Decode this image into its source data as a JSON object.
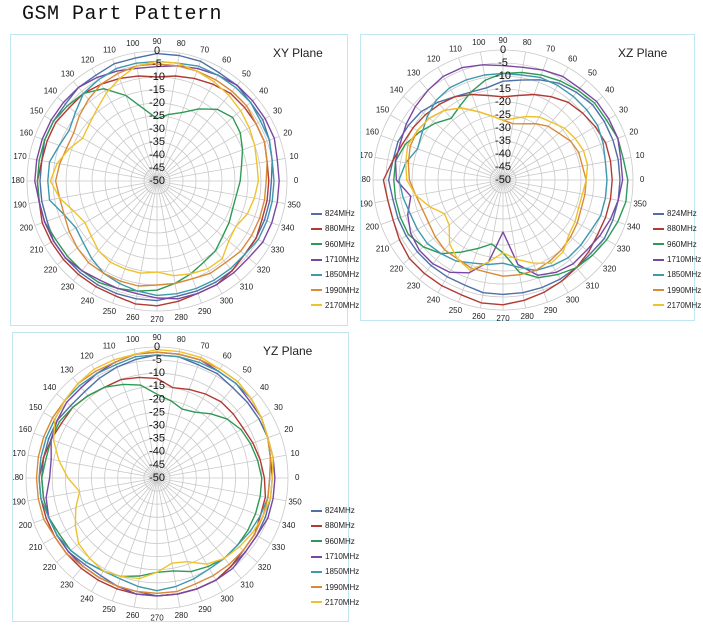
{
  "page_title": "GSM Part Pattern",
  "colors": {
    "824MHz": "#4e6fa8",
    "880MHz": "#b13a33",
    "960MHz": "#2e9a55",
    "1710MHz": "#7a46a3",
    "1850MHz": "#3e98ae",
    "1990MHz": "#d88a36",
    "2170MHz": "#efc22c"
  },
  "chart_data": [
    {
      "type": "radar",
      "title": "XY Plane",
      "radial_range": [
        -50,
        0
      ],
      "radial_ticks": [
        "0",
        "-5",
        "-10",
        "-15",
        "-20",
        "-25",
        "-30",
        "-35",
        "-40",
        "-45",
        "-50"
      ],
      "angle_ticks": [
        "0",
        "10",
        "20",
        "30",
        "40",
        "50",
        "60",
        "70",
        "80",
        "90",
        "100",
        "110",
        "120",
        "130",
        "140",
        "150",
        "160",
        "170",
        "180",
        "190",
        "200",
        "210",
        "220",
        "230",
        "240",
        "250",
        "260",
        "270",
        "280",
        "290",
        "300",
        "310",
        "320",
        "330",
        "340",
        "350"
      ],
      "legend_position": "right",
      "series": [
        {
          "name": "824MHz",
          "values": [
            -6,
            -5,
            -4,
            -3,
            -3,
            -2,
            -2,
            -1,
            -1,
            -1,
            -2,
            -2,
            -3,
            -3,
            -4,
            -4,
            -4,
            -5,
            -5,
            -5,
            -5,
            -4,
            -4,
            -4,
            -4,
            -4,
            -4,
            -4,
            -5,
            -5,
            -5,
            -5,
            -6,
            -6,
            -6,
            -6
          ]
        },
        {
          "name": "880MHz",
          "values": [
            -7,
            -7,
            -6,
            -6,
            -6,
            -6,
            -7,
            -8,
            -9,
            -10,
            -9,
            -8,
            -7,
            -6,
            -6,
            -5,
            -5,
            -5,
            -4,
            -4,
            -3,
            -3,
            -3,
            -3,
            -3,
            -3,
            -2,
            -2,
            -3,
            -4,
            -4,
            -5,
            -6,
            -6,
            -7,
            -7
          ]
        },
        {
          "name": "960MHz",
          "values": [
            -18,
            -17,
            -15,
            -13,
            -12,
            -14,
            -18,
            -22,
            -24,
            -26,
            -22,
            -15,
            -9,
            -6,
            -5,
            -4,
            -4,
            -4,
            -4,
            -4,
            -4,
            -5,
            -5,
            -5,
            -5,
            -6,
            -7,
            -8,
            -10,
            -12,
            -14,
            -15,
            -17,
            -18,
            -19,
            -19
          ]
        },
        {
          "name": "1710MHz",
          "values": [
            -3,
            -3,
            -2,
            -2,
            -2,
            -2,
            -3,
            -4,
            -5,
            -6,
            -6,
            -5,
            -4,
            -3,
            -3,
            -3,
            -3,
            -3,
            -3,
            -4,
            -4,
            -4,
            -4,
            -5,
            -6,
            -6,
            -6,
            -5,
            -4,
            -4,
            -4,
            -4,
            -4,
            -3,
            -3,
            -3
          ]
        },
        {
          "name": "1850MHz",
          "values": [
            -5,
            -5,
            -4,
            -4,
            -3,
            -3,
            -3,
            -3,
            -4,
            -4,
            -4,
            -4,
            -5,
            -6,
            -9,
            -11,
            -10,
            -8,
            -8,
            -8,
            -12,
            -14,
            -13,
            -11,
            -9,
            -8,
            -7,
            -6,
            -6,
            -6,
            -6,
            -6,
            -6,
            -5,
            -5,
            -5
          ]
        },
        {
          "name": "1990MHz",
          "values": [
            -8,
            -7,
            -6,
            -6,
            -5,
            -5,
            -5,
            -5,
            -5,
            -5,
            -5,
            -6,
            -7,
            -9,
            -11,
            -13,
            -13,
            -12,
            -11,
            -12,
            -12,
            -11,
            -10,
            -9,
            -9,
            -9,
            -9,
            -10,
            -10,
            -10,
            -9,
            -9,
            -8,
            -8,
            -8,
            -8
          ]
        },
        {
          "name": "2170MHz",
          "values": [
            -11,
            -11,
            -10,
            -9,
            -8,
            -7,
            -6,
            -5,
            -4,
            -4,
            -5,
            -8,
            -11,
            -14,
            -16,
            -17,
            -14,
            -11,
            -9,
            -12,
            -16,
            -18,
            -17,
            -15,
            -14,
            -14,
            -14,
            -15,
            -13,
            -12,
            -11,
            -11,
            -14,
            -15,
            -13,
            -12
          ]
        }
      ]
    },
    {
      "type": "radar",
      "title": "XZ Plane",
      "radial_range": [
        -50,
        0
      ],
      "radial_ticks": [
        "0",
        "-5",
        "-10",
        "-15",
        "-20",
        "-25",
        "-30",
        "-35",
        "-40",
        "-45",
        "-50"
      ],
      "angle_ticks": [
        "0",
        "10",
        "20",
        "30",
        "40",
        "50",
        "60",
        "70",
        "80",
        "90",
        "100",
        "110",
        "120",
        "130",
        "140",
        "150",
        "160",
        "170",
        "180",
        "190",
        "200",
        "210",
        "220",
        "230",
        "240",
        "250",
        "260",
        "270",
        "280",
        "290",
        "300",
        "310",
        "320",
        "330",
        "340",
        "350"
      ],
      "legend_position": "right",
      "series": [
        {
          "name": "824MHz",
          "values": [
            -5,
            -5,
            -5,
            -5,
            -5,
            -6,
            -7,
            -9,
            -11,
            -12,
            -14,
            -14,
            -13,
            -11,
            -9,
            -8,
            -7,
            -7,
            -6,
            -7,
            -7,
            -7,
            -7,
            -7,
            -7,
            -7,
            -6,
            -6,
            -6,
            -6,
            -6,
            -6,
            -6,
            -5,
            -5,
            -5
          ]
        },
        {
          "name": "880MHz",
          "values": [
            -8,
            -8,
            -8,
            -9,
            -10,
            -11,
            -13,
            -15,
            -17,
            -18,
            -17,
            -15,
            -13,
            -12,
            -11,
            -10,
            -9,
            -7,
            -4,
            -5,
            -5,
            -4,
            -3,
            -3,
            -3,
            -3,
            -2,
            -2,
            -3,
            -4,
            -5,
            -6,
            -7,
            -8,
            -8,
            -8
          ]
        },
        {
          "name": "960MHz",
          "values": [
            -2,
            -3,
            -3,
            -4,
            -4,
            -5,
            -6,
            -7,
            -8,
            -9,
            -11,
            -14,
            -17,
            -19,
            -16,
            -13,
            -10,
            -8,
            -8,
            -8,
            -8,
            -8,
            -10,
            -13,
            -18,
            -22,
            -25,
            -22,
            -14,
            -10,
            -8,
            -6,
            -5,
            -4,
            -3,
            -2
          ]
        },
        {
          "name": "1710MHz",
          "values": [
            -4,
            -4,
            -3,
            -3,
            -3,
            -4,
            -4,
            -5,
            -6,
            -6,
            -5,
            -4,
            -4,
            -5,
            -6,
            -7,
            -8,
            -8,
            -9,
            -14,
            -11,
            -9,
            -8,
            -8,
            -9,
            -12,
            -18,
            -30,
            -17,
            -11,
            -9,
            -8,
            -8,
            -7,
            -6,
            -5
          ]
        },
        {
          "name": "1850MHz",
          "values": [
            -10,
            -10,
            -9,
            -8,
            -8,
            -8,
            -8,
            -8,
            -9,
            -9,
            -9,
            -9,
            -9,
            -10,
            -12,
            -14,
            -15,
            -12,
            -10,
            -11,
            -12,
            -12,
            -12,
            -13,
            -14,
            -16,
            -17,
            -18,
            -16,
            -13,
            -12,
            -11,
            -11,
            -11,
            -10,
            -10
          ]
        },
        {
          "name": "1990MHz",
          "values": [
            -18,
            -19,
            -19,
            -20,
            -22,
            -23,
            -25,
            -27,
            -28,
            -27,
            -25,
            -22,
            -18,
            -15,
            -13,
            -12,
            -12,
            -13,
            -14,
            -16,
            -17,
            -17,
            -16,
            -15,
            -15,
            -14,
            -14,
            -13,
            -13,
            -13,
            -14,
            -15,
            -16,
            -17,
            -18,
            -18
          ]
        },
        {
          "name": "2170MHz",
          "values": [
            -18,
            -17,
            -17,
            -18,
            -19,
            -21,
            -22,
            -24,
            -26,
            -27,
            -25,
            -22,
            -18,
            -15,
            -13,
            -12,
            -11,
            -12,
            -13,
            -16,
            -20,
            -24,
            -23,
            -18,
            -15,
            -13,
            -18,
            -22,
            -19,
            -16,
            -13,
            -14,
            -17,
            -18,
            -19,
            -19
          ]
        }
      ]
    },
    {
      "type": "radar",
      "title": "YZ Plane",
      "radial_range": [
        -50,
        0
      ],
      "radial_ticks": [
        "0",
        "-5",
        "-10",
        "-15",
        "-20",
        "-25",
        "-30",
        "-35",
        "-40",
        "-45",
        "-50"
      ],
      "angle_ticks": [
        "0",
        "10",
        "20",
        "30",
        "40",
        "50",
        "60",
        "70",
        "80",
        "90",
        "100",
        "110",
        "120",
        "130",
        "140",
        "150",
        "160",
        "170",
        "180",
        "190",
        "200",
        "210",
        "220",
        "230",
        "240",
        "250",
        "260",
        "270",
        "280",
        "290",
        "300",
        "310",
        "320",
        "330",
        "340",
        "350"
      ],
      "legend_position": "right",
      "series": [
        {
          "name": "824MHz",
          "values": [
            -6,
            -6,
            -5,
            -5,
            -5,
            -5,
            -4,
            -4,
            -3,
            -3,
            -4,
            -5,
            -6,
            -7,
            -7,
            -6,
            -6,
            -6,
            -6,
            -6,
            -6,
            -6,
            -6,
            -7,
            -7,
            -6,
            -6,
            -5,
            -5,
            -5,
            -5,
            -6,
            -6,
            -6,
            -6,
            -6
          ]
        },
        {
          "name": "880MHz",
          "values": [
            -9,
            -10,
            -11,
            -12,
            -12,
            -12,
            -13,
            -14,
            -15,
            -12,
            -11,
            -10,
            -10,
            -9,
            -8,
            -8,
            -7,
            -6,
            -5,
            -5,
            -5,
            -5,
            -5,
            -5,
            -5,
            -5,
            -5,
            -5,
            -5,
            -5,
            -5,
            -6,
            -7,
            -7,
            -8,
            -8
          ]
        },
        {
          "name": "960MHz",
          "values": [
            -10,
            -11,
            -12,
            -13,
            -15,
            -18,
            -21,
            -22,
            -20,
            -18,
            -14,
            -12,
            -10,
            -9,
            -8,
            -7,
            -7,
            -7,
            -6,
            -6,
            -6,
            -7,
            -7,
            -8,
            -9,
            -10,
            -12,
            -14,
            -14,
            -12,
            -11,
            -10,
            -10,
            -10,
            -10,
            -10
          ]
        },
        {
          "name": "1710MHz",
          "values": [
            -5,
            -5,
            -5,
            -4,
            -4,
            -3,
            -3,
            -2,
            -2,
            -2,
            -2,
            -3,
            -4,
            -5,
            -5,
            -6,
            -7,
            -9,
            -9,
            -7,
            -6,
            -6,
            -6,
            -6,
            -6,
            -6,
            -5,
            -5,
            -5,
            -5,
            -5,
            -5,
            -6,
            -6,
            -5,
            -5
          ]
        },
        {
          "name": "1850MHz",
          "values": [
            -7,
            -6,
            -5,
            -4,
            -3,
            -3,
            -3,
            -3,
            -3,
            -3,
            -3,
            -4,
            -4,
            -4,
            -4,
            -5,
            -5,
            -5,
            -5,
            -5,
            -6,
            -6,
            -7,
            -8,
            -9,
            -9,
            -8,
            -7,
            -8,
            -9,
            -10,
            -10,
            -10,
            -9,
            -8,
            -7
          ]
        },
        {
          "name": "1990MHz",
          "values": [
            -7,
            -6,
            -5,
            -4,
            -3,
            -2,
            -2,
            -2,
            -2,
            -2,
            -2,
            -3,
            -3,
            -3,
            -4,
            -4,
            -4,
            -4,
            -4,
            -4,
            -4,
            -5,
            -5,
            -6,
            -6,
            -6,
            -6,
            -6,
            -6,
            -7,
            -7,
            -7,
            -7,
            -7,
            -7,
            -7
          ]
        },
        {
          "name": "2170MHz",
          "values": [
            -6,
            -5,
            -5,
            -4,
            -3,
            -2,
            -2,
            -1,
            -1,
            -1,
            -2,
            -2,
            -2,
            -3,
            -4,
            -5,
            -8,
            -12,
            -16,
            -20,
            -17,
            -14,
            -11,
            -10,
            -9,
            -10,
            -11,
            -14,
            -17,
            -16,
            -12,
            -10,
            -9,
            -8,
            -7,
            -6
          ]
        }
      ]
    }
  ]
}
